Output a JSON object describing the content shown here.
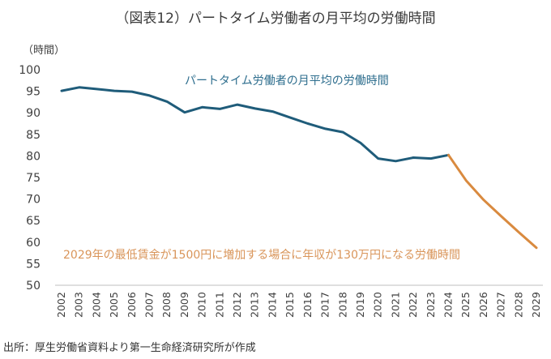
{
  "header": {
    "title": "（図表12）パートタイム労働者の月平均の労働時間",
    "unit": "（時間）"
  },
  "footer": {
    "source": "出所：厚生労働省資料より第一生命経済研究所が作成"
  },
  "colors": {
    "actual": "#1f5c7a",
    "projection": "#d98a3f",
    "actual_label": "#2e6e8e",
    "projection_label": "#d9955a"
  },
  "chart_data": {
    "type": "line",
    "title": "（図表12）パートタイム労働者の月平均の労働時間",
    "ylabel": "（時間）",
    "ylim": [
      50,
      100
    ],
    "yticks": [
      50,
      55,
      60,
      65,
      70,
      75,
      80,
      85,
      90,
      95,
      100
    ],
    "categories": [
      "2002",
      "2003",
      "2004",
      "2005",
      "2006",
      "2007",
      "2008",
      "2009",
      "2010",
      "2011",
      "2012",
      "2013",
      "2014",
      "2015",
      "2016",
      "2017",
      "2018",
      "2019",
      "2020",
      "2021",
      "2022",
      "2023",
      "2024",
      "2025",
      "2026",
      "2027",
      "2028",
      "2029"
    ],
    "series": [
      {
        "name": "パートタイム労働者の月平均の労働時間",
        "x": [
          "2002",
          "2003",
          "2004",
          "2005",
          "2006",
          "2007",
          "2008",
          "2009",
          "2010",
          "2011",
          "2012",
          "2013",
          "2014",
          "2015",
          "2016",
          "2017",
          "2018",
          "2019",
          "2020",
          "2021",
          "2022",
          "2023",
          "2024"
        ],
        "values": [
          95.1,
          95.9,
          95.5,
          95.1,
          94.9,
          94.0,
          92.6,
          90.1,
          91.3,
          90.9,
          91.9,
          91.0,
          90.3,
          88.9,
          87.5,
          86.3,
          85.5,
          83.0,
          79.4,
          78.8,
          79.6,
          79.4,
          80.2
        ]
      },
      {
        "name": "2029年の最低賃金が1500円に増加する場合に年収が130万円になる労働時間",
        "x": [
          "2024",
          "2025",
          "2026",
          "2027",
          "2028",
          "2029"
        ],
        "values": [
          80.2,
          74.3,
          69.8,
          66.0,
          62.3,
          58.7
        ]
      }
    ]
  }
}
